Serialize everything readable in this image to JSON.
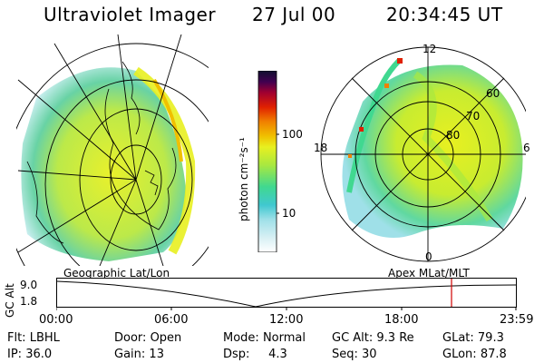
{
  "header": {
    "title": "Ultraviolet Imager",
    "date": "27 Jul 00",
    "time": "20:34:45 UT"
  },
  "colorbar": {
    "unit_label": "photon cm⁻²s⁻¹",
    "ticks": [
      "100",
      "10"
    ],
    "colors": [
      "#ffffff",
      "#d8f0f4",
      "#9fe0e8",
      "#40c8d0",
      "#40d890",
      "#a8e840",
      "#e8f020",
      "#f0c000",
      "#f08000",
      "#e02000",
      "#a00030",
      "#400050",
      "#101030"
    ]
  },
  "maps": {
    "left_label": "Geographic Lat/Lon",
    "right_label": "Apex MLat/MLT",
    "mlt_labels": {
      "top": "12",
      "left": "18",
      "right": "6",
      "bottom": "0"
    },
    "mlat_labels": [
      "60",
      "70",
      "80"
    ]
  },
  "altitude_plot": {
    "ylabel": "GC Alt",
    "yticks": [
      "9.0",
      "1.8"
    ],
    "xticks": [
      "00:00",
      "06:00",
      "12:00",
      "18:00",
      "23:59"
    ],
    "current_marker_time": "20:34",
    "marker_color": "#d00000"
  },
  "footer": {
    "filter_label": "Flt:",
    "filter_value": "LBHL",
    "door_label": "Door:",
    "door_value": "Open",
    "mode_label": "Mode:",
    "mode_value": "Normal",
    "gcalt_label": "GC Alt:",
    "gcalt_value": "9.3 Re",
    "glat_label": "GLat:",
    "glat_value": "79.3",
    "ip_label": "IP:",
    "ip_value": "36.0",
    "gain_label": "Gain:",
    "gain_value": "13",
    "dsp_label": "Dsp:",
    "dsp_value": "4.3",
    "seq_label": "Seq:",
    "seq_value": "30",
    "glon_label": "GLon:",
    "glon_value": "87.8"
  }
}
